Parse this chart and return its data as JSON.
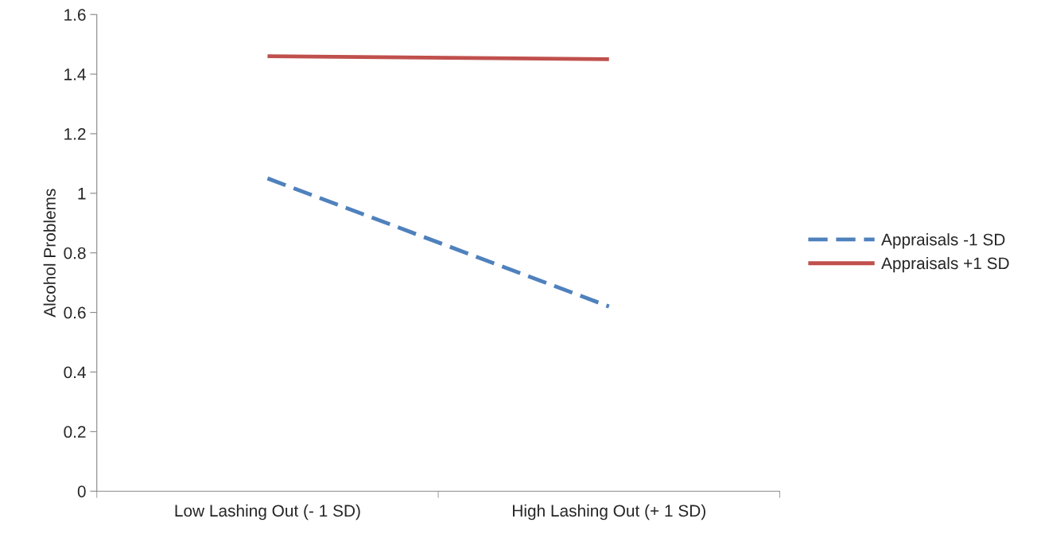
{
  "chart_data": {
    "type": "line",
    "ylabel": "Alcohol Problems",
    "categories": [
      "Low Lashing Out (- 1 SD)",
      "High Lashing Out (+ 1 SD)"
    ],
    "series": [
      {
        "name": "Appraisals -1 SD",
        "color": "#4f81bd",
        "values": [
          1.05,
          0.62
        ],
        "line_style": "dashed"
      },
      {
        "name": "Appraisals +1 SD",
        "color": "#c0504d",
        "values": [
          1.46,
          1.45
        ],
        "line_style": "solid"
      }
    ],
    "ylim": [
      0,
      1.6
    ],
    "yticks": [
      0,
      0.2,
      0.4,
      0.6,
      0.8,
      1,
      1.2,
      1.4,
      1.6
    ],
    "grid": false,
    "legend": "right",
    "marker": "none"
  }
}
